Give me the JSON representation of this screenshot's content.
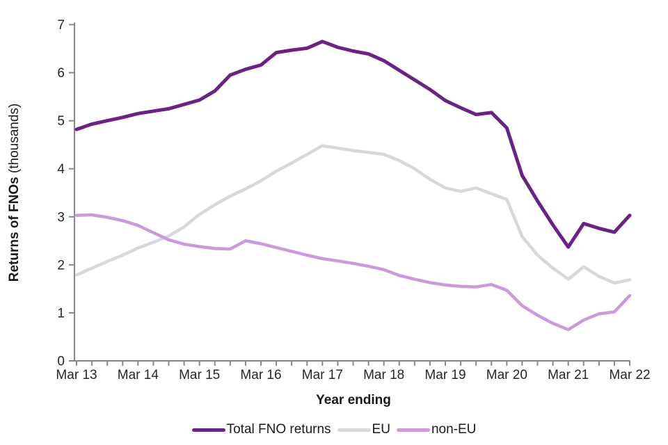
{
  "chart_data": {
    "type": "line",
    "title": "",
    "xlabel": "Year ending",
    "ylabel": "Returns of FNOs (thousands)",
    "ylabel_bold": "Returns of FNOs",
    "ylabel_regular": " (thousands)",
    "x_year_labels": [
      "Mar 13",
      "Mar 14",
      "Mar 15",
      "Mar 16",
      "Mar 17",
      "Mar 18",
      "Mar 19",
      "Mar 20",
      "Mar 21",
      "Mar 22"
    ],
    "x_ticks_per_year": 4,
    "ylim": [
      0,
      7
    ],
    "y_ticks": [
      0,
      1,
      2,
      3,
      4,
      5,
      6,
      7
    ],
    "grid": false,
    "legend_position": "bottom",
    "series": [
      {
        "name": "Total FNO returns",
        "color": "#6a2383",
        "width": 5,
        "values": [
          4.82,
          4.93,
          5.0,
          5.07,
          5.15,
          5.2,
          5.25,
          5.34,
          5.43,
          5.62,
          5.95,
          6.07,
          6.16,
          6.42,
          6.47,
          6.51,
          6.65,
          6.53,
          6.45,
          6.39,
          6.25,
          6.05,
          5.85,
          5.65,
          5.42,
          5.27,
          5.13,
          5.17,
          4.85,
          3.86,
          3.33,
          2.83,
          2.37,
          2.86,
          2.76,
          2.68,
          3.03
        ]
      },
      {
        "name": "EU",
        "color": "#dad6de",
        "width": 4.5,
        "values": [
          1.79,
          1.93,
          2.07,
          2.2,
          2.35,
          2.47,
          2.6,
          2.79,
          3.05,
          3.25,
          3.43,
          3.58,
          3.75,
          3.95,
          4.12,
          4.3,
          4.48,
          4.43,
          4.38,
          4.34,
          4.3,
          4.17,
          4.0,
          3.78,
          3.6,
          3.53,
          3.6,
          3.48,
          3.36,
          2.59,
          2.2,
          1.93,
          1.7,
          1.96,
          1.76,
          1.62,
          1.69
        ]
      },
      {
        "name": "non-EU",
        "color": "#ca9bdc",
        "width": 4.5,
        "values": [
          3.03,
          3.04,
          2.99,
          2.92,
          2.82,
          2.67,
          2.52,
          2.43,
          2.38,
          2.34,
          2.33,
          2.5,
          2.44,
          2.36,
          2.28,
          2.2,
          2.13,
          2.08,
          2.03,
          1.97,
          1.9,
          1.78,
          1.7,
          1.63,
          1.58,
          1.55,
          1.54,
          1.59,
          1.47,
          1.15,
          0.95,
          0.78,
          0.65,
          0.85,
          0.98,
          1.02,
          1.36
        ]
      }
    ]
  },
  "style": {
    "axis_color": "#888888",
    "text_color": "#262626"
  }
}
